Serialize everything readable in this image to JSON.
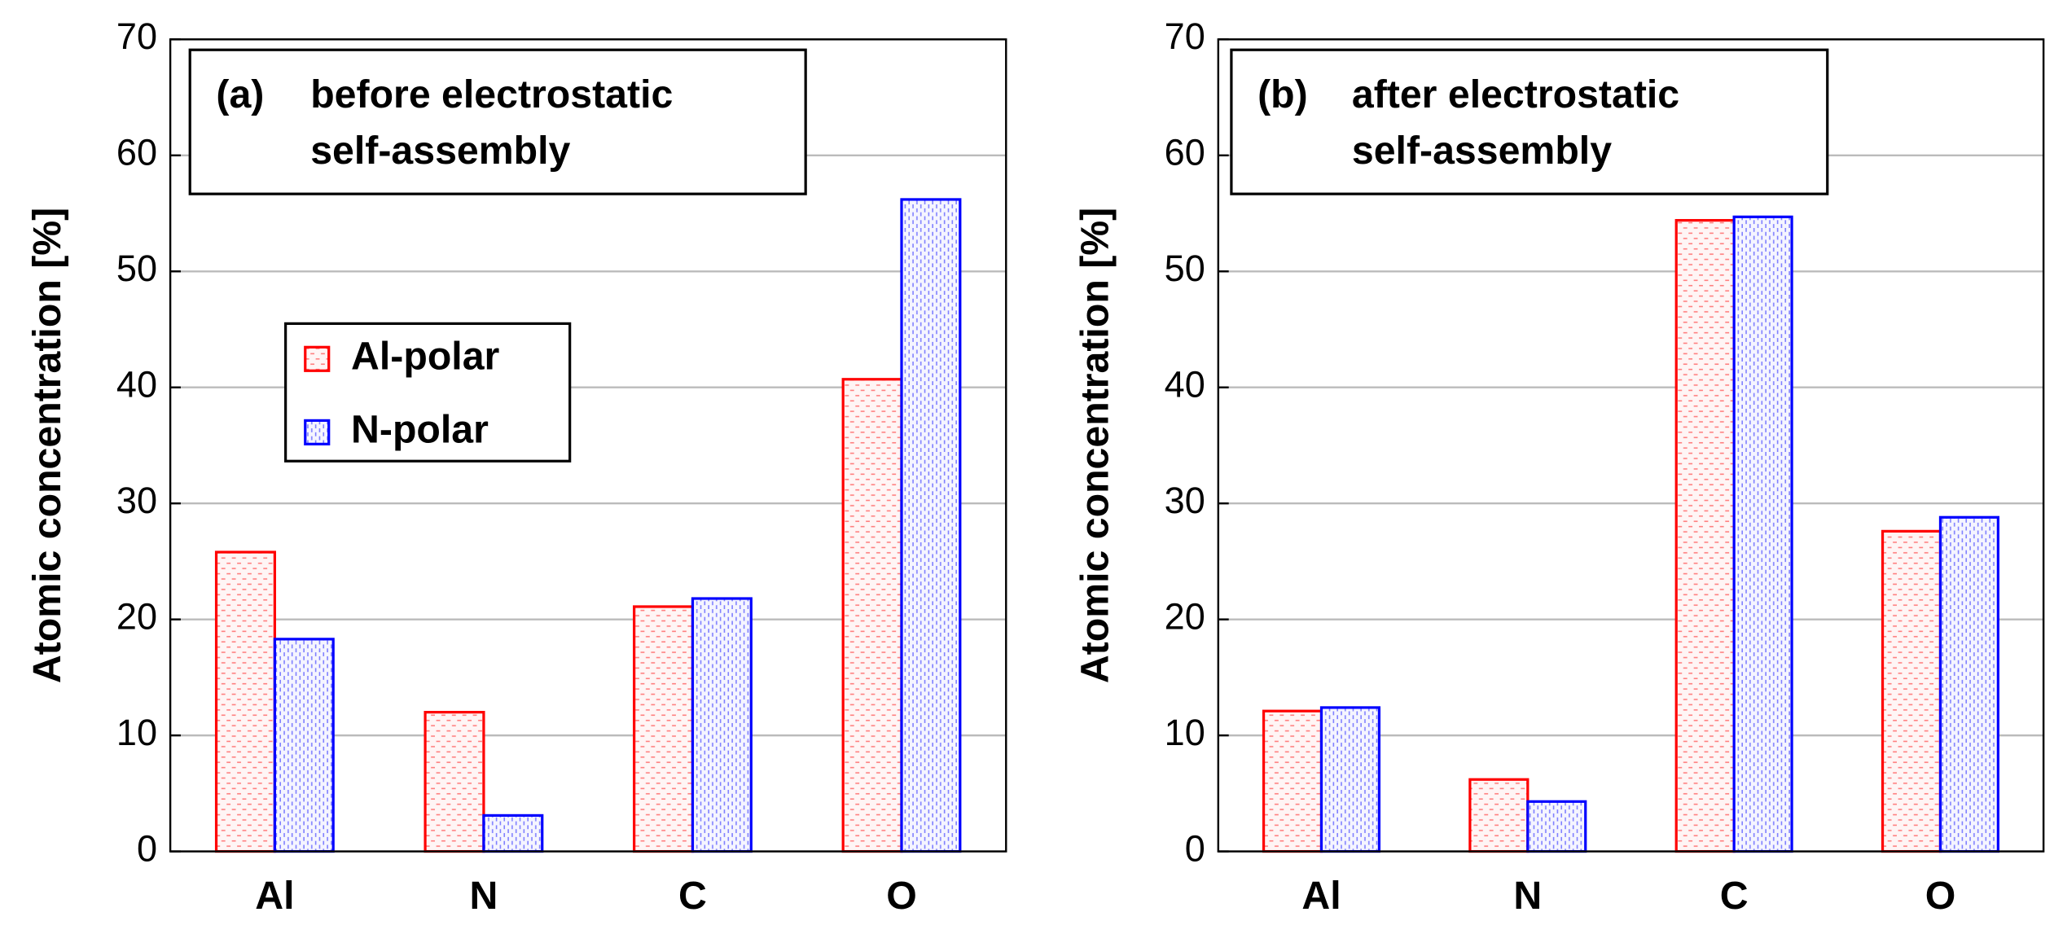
{
  "chart_data": [
    {
      "type": "bar",
      "panel_label": "(a)",
      "title_lines": [
        "before electrostatic",
        "self-assembly"
      ],
      "y_label": "Atomic concentration [%]",
      "categories": [
        "Al",
        "N",
        "C",
        "O"
      ],
      "series": [
        {
          "name": "Al-polar",
          "color": "#ff0000",
          "values": [
            25.8,
            12.0,
            21.1,
            40.7
          ]
        },
        {
          "name": "N-polar",
          "color": "#0000ff",
          "values": [
            18.3,
            3.1,
            21.8,
            56.2
          ]
        }
      ],
      "ylim": [
        0,
        70
      ],
      "yticks": [
        0,
        10,
        20,
        30,
        40,
        50,
        60,
        70
      ],
      "grid": true,
      "legend": "center-left"
    },
    {
      "type": "bar",
      "panel_label": "(b)",
      "title_lines": [
        "after electrostatic",
        "self-assembly"
      ],
      "y_label": "Atomic concentration [%]",
      "categories": [
        "Al",
        "N",
        "C",
        "O"
      ],
      "series": [
        {
          "name": "Al-polar",
          "color": "#ff0000",
          "values": [
            12.1,
            6.2,
            54.4,
            27.6
          ]
        },
        {
          "name": "N-polar",
          "color": "#0000ff",
          "values": [
            12.4,
            4.3,
            54.7,
            28.8
          ]
        }
      ],
      "ylim": [
        0,
        70
      ],
      "yticks": [
        0,
        10,
        20,
        30,
        40,
        50,
        60,
        70
      ],
      "grid": true,
      "legend": "none"
    }
  ]
}
